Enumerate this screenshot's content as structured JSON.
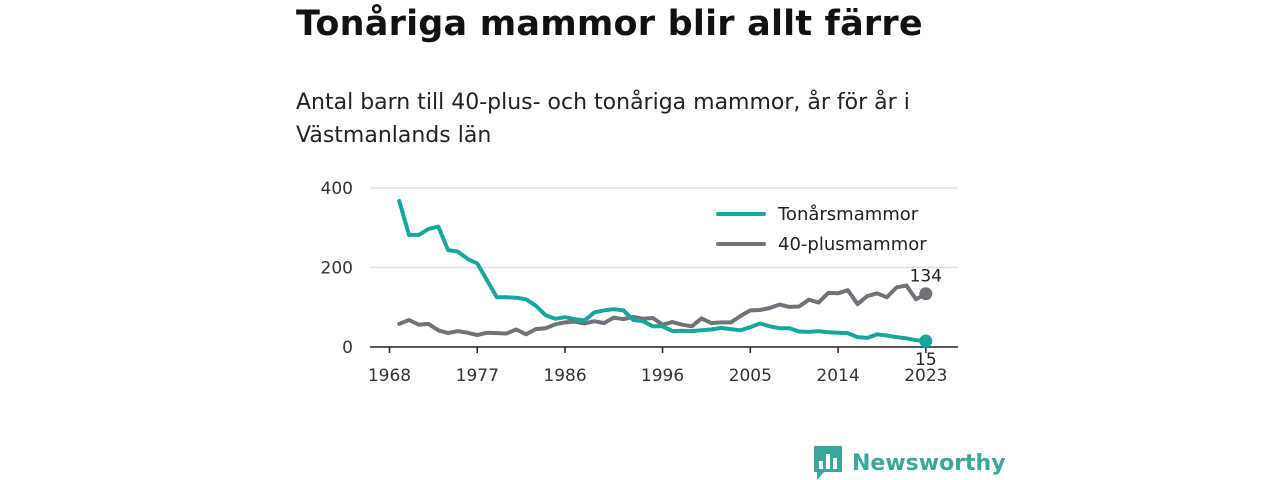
{
  "header": {
    "title": "Tonåriga mammor blir allt färre",
    "subtitle": "Antal barn till 40-plus- och tonåriga mammor, år för år i Västmanlands län"
  },
  "branding": {
    "name": "Newsworthy",
    "logo_icon": "bar-chart-icon",
    "color": "#3aa79a"
  },
  "chart_data": {
    "type": "line",
    "x": [
      1969,
      1970,
      1971,
      1972,
      1973,
      1974,
      1975,
      1976,
      1977,
      1978,
      1979,
      1980,
      1981,
      1982,
      1983,
      1984,
      1985,
      1986,
      1987,
      1988,
      1989,
      1990,
      1991,
      1992,
      1993,
      1994,
      1995,
      1996,
      1997,
      1998,
      1999,
      2000,
      2001,
      2002,
      2003,
      2004,
      2005,
      2006,
      2007,
      2008,
      2009,
      2010,
      2011,
      2012,
      2013,
      2014,
      2015,
      2016,
      2017,
      2018,
      2019,
      2020,
      2021,
      2022,
      2023
    ],
    "series": [
      {
        "name": "Tonårsmammor",
        "color": "#14a89b",
        "values": [
          367,
          282,
          282,
          297,
          303,
          244,
          240,
          222,
          210,
          168,
          125,
          125,
          124,
          120,
          104,
          80,
          71,
          75,
          70,
          67,
          87,
          92,
          95,
          92,
          68,
          65,
          52,
          52,
          40,
          41,
          40,
          42,
          44,
          48,
          45,
          42,
          50,
          59,
          52,
          47,
          47,
          39,
          38,
          40,
          37,
          36,
          35,
          25,
          23,
          32,
          29,
          25,
          22,
          17,
          15
        ]
      },
      {
        "name": "40-plusmammor",
        "color": "#727177",
        "values": [
          58,
          68,
          56,
          58,
          42,
          35,
          40,
          36,
          30,
          36,
          35,
          34,
          44,
          32,
          45,
          47,
          57,
          62,
          64,
          59,
          65,
          60,
          74,
          70,
          76,
          71,
          73,
          56,
          63,
          56,
          52,
          72,
          60,
          62,
          62,
          78,
          92,
          93,
          98,
          107,
          101,
          102,
          119,
          112,
          136,
          135,
          143,
          108,
          128,
          135,
          125,
          150,
          155,
          120,
          134
        ]
      }
    ],
    "end_labels": [
      {
        "series": "40-plusmammor",
        "value": "134"
      },
      {
        "series": "Tonårsmammor",
        "value": "15"
      }
    ],
    "x_ticks": [
      "1968",
      "1977",
      "1986",
      "1996",
      "2005",
      "2014",
      "2023"
    ],
    "y_ticks": [
      "0",
      "200",
      "400"
    ],
    "ylim": [
      0,
      400
    ],
    "grid": true,
    "legend": "top-right"
  }
}
